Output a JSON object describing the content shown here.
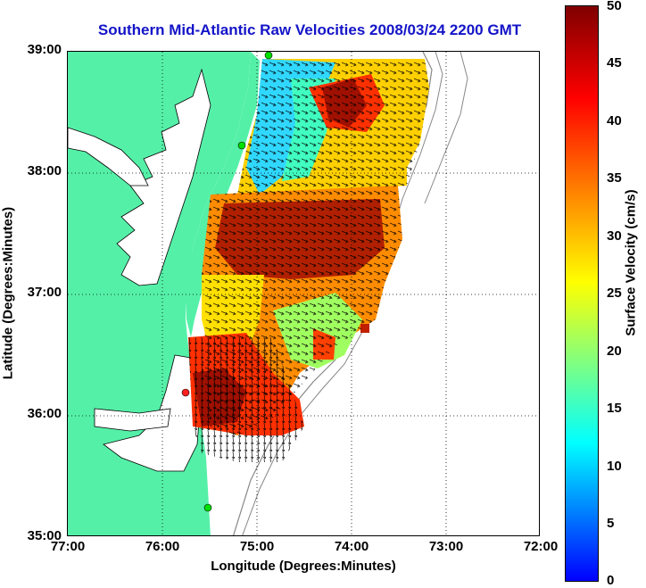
{
  "title": "Southern Mid-Atlantic Raw Velocities 2008/03/24 2200 GMT",
  "x_axis": {
    "label": "Longitude (Degrees:Minutes)",
    "ticks": [
      "77:00",
      "76:00",
      "75:00",
      "74:00",
      "73:00",
      "72:00"
    ]
  },
  "y_axis": {
    "label": "Latitude (Degrees:Minutes)",
    "ticks": [
      "39:00",
      "38:00",
      "37:00",
      "36:00",
      "35:00"
    ]
  },
  "colorbar": {
    "label": "Surface Velocity (cm/s)",
    "ticks": [
      "50",
      "45",
      "40",
      "35",
      "30",
      "25",
      "20",
      "15",
      "10",
      "5",
      "0"
    ],
    "range": [
      0,
      50
    ]
  },
  "colors": {
    "land": "#55f0a8",
    "water": "#ffffff",
    "title": "#1414c8"
  }
}
